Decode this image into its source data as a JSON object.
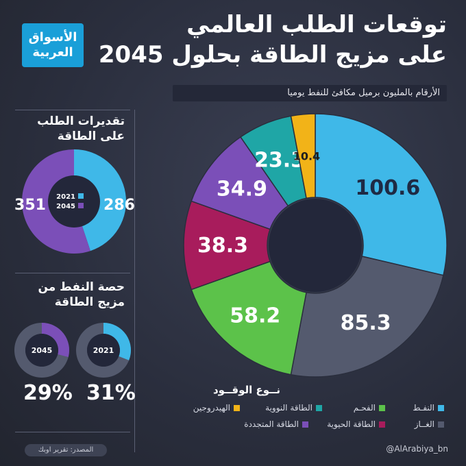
{
  "header": {
    "title_line1": "توقعات الطلب العالمي",
    "title_line2": "على مزيج الطاقة بحلول 2045",
    "logo_text": "الأسواق\nالعربية",
    "units_note": "الأرقام بالمليون برميل مكافئ للنفط يوميا"
  },
  "side": {
    "demand_title": "تقديرات الطلب على الطاقة",
    "oil_share_title": "حصة النفط من مزيج الطاقة"
  },
  "legend": {
    "title": "نــوع الوقــود",
    "items": [
      {
        "label": "النفـط",
        "color": "#3fb8e8"
      },
      {
        "label": "الفحـم",
        "color": "#5cc24a"
      },
      {
        "label": "الطاقة النووية",
        "color": "#1fa6a6"
      },
      {
        "label": "الهيدروجين",
        "color": "#f2b318"
      },
      {
        "label": "الغــاز",
        "color": "#545a6e"
      },
      {
        "label": "الطاقة الحيوية",
        "color": "#a81c5c"
      },
      {
        "label": "الطاقة المتجددة",
        "color": "#7b4fb8"
      }
    ]
  },
  "chart_data": [
    {
      "type": "pie",
      "title": "",
      "labels": [
        "النفط",
        "الغاز",
        "الفحم",
        "الطاقة الحيوية",
        "الطاقة المتجددة",
        "الطاقة النووية",
        "الهيدروجين"
      ],
      "values": [
        100.6,
        85.3,
        58.2,
        38.3,
        34.9,
        23.3,
        10.4
      ],
      "colors": [
        "#3fb8e8",
        "#545a6e",
        "#5cc24a",
        "#a81c5c",
        "#7b4fb8",
        "#1fa6a6",
        "#f2b318"
      ],
      "value_labels": [
        "100.6",
        "85.3",
        "58.2",
        "38.3",
        "34.9",
        "23.3",
        "10.4"
      ]
    },
    {
      "type": "pie",
      "labels": [
        "2021",
        "2045"
      ],
      "values": [
        286,
        351
      ],
      "colors": [
        "#3fb8e8",
        "#7b4fb8"
      ],
      "value_labels": [
        "286",
        "351"
      ]
    },
    {
      "type": "pie",
      "labels": [
        "2021"
      ],
      "values": [
        31
      ],
      "colors": [
        "#3fb8e8",
        "#545a6e"
      ],
      "value_labels": [
        "31%"
      ]
    },
    {
      "type": "pie",
      "labels": [
        "2045"
      ],
      "values": [
        29
      ],
      "colors": [
        "#7b4fb8",
        "#545a6e"
      ],
      "value_labels": [
        "29%"
      ]
    }
  ],
  "footer": {
    "source": "المصدر: تقرير اوبك",
    "handle": "@AlArabiya_bn"
  }
}
